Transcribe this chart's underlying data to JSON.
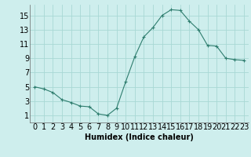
{
  "x": [
    0,
    1,
    2,
    3,
    4,
    5,
    6,
    7,
    8,
    9,
    10,
    11,
    12,
    13,
    14,
    15,
    16,
    17,
    18,
    19,
    20,
    21,
    22,
    23
  ],
  "y": [
    5.0,
    4.7,
    4.2,
    3.2,
    2.8,
    2.3,
    2.2,
    1.2,
    1.0,
    2.0,
    5.7,
    9.2,
    12.0,
    13.3,
    15.0,
    15.8,
    15.7,
    14.2,
    13.0,
    10.8,
    10.7,
    9.0,
    8.8,
    8.7
  ],
  "line_color": "#2e7d6e",
  "marker": "+",
  "marker_size": 3,
  "bg_color": "#ceeeed",
  "grid_color": "#a8d8d5",
  "xlabel": "Humidex (Indice chaleur)",
  "xlabel_fontsize": 7,
  "tick_fontsize": 7,
  "xlim": [
    -0.5,
    23.5
  ],
  "ylim": [
    0,
    16.5
  ],
  "yticks": [
    1,
    3,
    5,
    7,
    9,
    11,
    13,
    15
  ],
  "xticks": [
    0,
    1,
    2,
    3,
    4,
    5,
    6,
    7,
    8,
    9,
    10,
    11,
    12,
    13,
    14,
    15,
    16,
    17,
    18,
    19,
    20,
    21,
    22,
    23
  ]
}
